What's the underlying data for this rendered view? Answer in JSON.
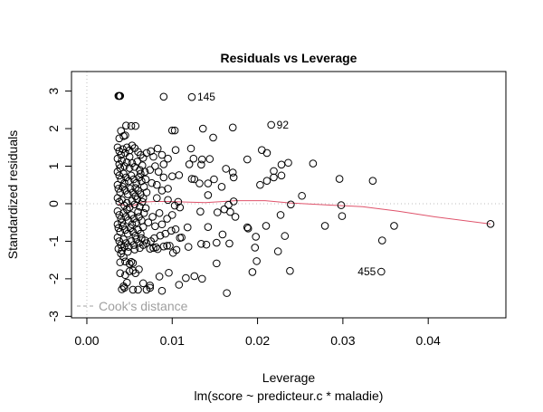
{
  "chart_data": {
    "type": "scatter",
    "title": "Residuals vs Leverage",
    "xlabel": "Leverage",
    "subtitle": "lm(score ~ predicteur.c * maladie)",
    "ylabel": "Standardized residuals",
    "xlim": [
      -0.0018,
      0.0491
    ],
    "ylim": [
      -3.04,
      3.52
    ],
    "xticks": [
      0.0,
      0.01,
      0.02,
      0.03,
      0.04
    ],
    "xtick_labels": [
      "0.00",
      "0.01",
      "0.02",
      "0.03",
      "0.04"
    ],
    "yticks": [
      -3,
      -2,
      -1,
      0,
      1,
      2,
      3
    ],
    "ytick_labels": [
      "-3",
      "-2",
      "-1",
      "0",
      "1",
      "2",
      "3"
    ],
    "grid": false,
    "reference_lines": {
      "x": 0,
      "y": 0,
      "color": "#bebebe",
      "style": "dotted"
    },
    "legend": {
      "label": "Cook's distance",
      "placement": "bottom-left",
      "color": "#a0a0a0",
      "style": "dashed"
    },
    "smoother": {
      "color": "#df536b",
      "points": [
        [
          0.0037,
          -0.01
        ],
        [
          0.0045,
          -0.05
        ],
        [
          0.0052,
          -0.07
        ],
        [
          0.0058,
          -0.02
        ],
        [
          0.0064,
          0.04
        ],
        [
          0.008,
          0.06
        ],
        [
          0.0096,
          0.06
        ],
        [
          0.012,
          0.04
        ],
        [
          0.0139,
          0.03
        ],
        [
          0.016,
          0.06
        ],
        [
          0.0174,
          0.08
        ],
        [
          0.0209,
          0.08
        ],
        [
          0.0238,
          0.02
        ],
        [
          0.028,
          -0.03
        ],
        [
          0.0323,
          -0.08
        ],
        [
          0.0365,
          -0.2
        ],
        [
          0.0408,
          -0.35
        ],
        [
          0.0473,
          -0.54
        ]
      ]
    },
    "labeled_points": [
      {
        "label": "145",
        "x": 0.0123,
        "y": 2.84,
        "side": "right"
      },
      {
        "label": "92",
        "x": 0.0216,
        "y": 2.1,
        "side": "right"
      },
      {
        "label": "455",
        "x": 0.0345,
        "y": -1.81,
        "side": "left"
      }
    ],
    "points": [
      [
        0.0037,
        2.87
      ],
      [
        0.0038,
        2.87
      ],
      [
        0.0039,
        2.87
      ],
      [
        0.009,
        2.85
      ],
      [
        0.0123,
        2.84
      ],
      [
        0.0216,
        2.1
      ],
      [
        0.01,
        1.95
      ],
      [
        0.0103,
        1.95
      ],
      [
        0.0136,
        2.0
      ],
      [
        0.0171,
        2.03
      ],
      [
        0.0148,
        1.76
      ],
      [
        0.0046,
        2.08
      ],
      [
        0.0052,
        2.07
      ],
      [
        0.0057,
        2.07
      ],
      [
        0.004,
        1.94
      ],
      [
        0.0043,
        1.8
      ],
      [
        0.0045,
        1.82
      ],
      [
        0.0038,
        1.74
      ],
      [
        0.0083,
        1.47
      ],
      [
        0.0104,
        1.43
      ],
      [
        0.0122,
        1.47
      ],
      [
        0.0205,
        1.43
      ],
      [
        0.0211,
        1.35
      ],
      [
        0.0188,
        1.18
      ],
      [
        0.0125,
        1.2
      ],
      [
        0.0135,
        1.18
      ],
      [
        0.0144,
        1.19
      ],
      [
        0.012,
        1.05
      ],
      [
        0.0134,
        1.04
      ],
      [
        0.0163,
        0.93
      ],
      [
        0.0171,
        0.83
      ],
      [
        0.0172,
        0.7
      ],
      [
        0.0219,
        0.87
      ],
      [
        0.0228,
        1.04
      ],
      [
        0.0236,
        1.09
      ],
      [
        0.0265,
        1.07
      ],
      [
        0.0219,
        0.7
      ],
      [
        0.0228,
        0.75
      ],
      [
        0.0296,
        0.66
      ],
      [
        0.0335,
        0.61
      ],
      [
        0.0252,
        0.21
      ],
      [
        0.0239,
        -0.02
      ],
      [
        0.0298,
        -0.04
      ],
      [
        0.0299,
        -0.33
      ],
      [
        0.0227,
        -0.3
      ],
      [
        0.0279,
        -0.59
      ],
      [
        0.036,
        -0.59
      ],
      [
        0.0232,
        -0.86
      ],
      [
        0.0346,
        -0.98
      ],
      [
        0.0224,
        -1.27
      ],
      [
        0.0345,
        -1.81
      ],
      [
        0.0238,
        -1.79
      ],
      [
        0.0473,
        -0.54
      ],
      [
        0.0123,
        0.66
      ],
      [
        0.0126,
        0.65
      ],
      [
        0.0132,
        0.54
      ],
      [
        0.0142,
        0.54
      ],
      [
        0.0149,
        0.65
      ],
      [
        0.0158,
        0.45
      ],
      [
        0.0203,
        0.5
      ],
      [
        0.0211,
        0.61
      ],
      [
        0.0142,
        0.23
      ],
      [
        0.0172,
        0.06
      ],
      [
        0.0166,
        -0.03
      ],
      [
        0.0161,
        -0.15
      ],
      [
        0.0168,
        -0.22
      ],
      [
        0.0174,
        -0.35
      ],
      [
        0.0153,
        -0.23
      ],
      [
        0.0133,
        -0.21
      ],
      [
        0.0118,
        -0.63
      ],
      [
        0.0142,
        -0.62
      ],
      [
        0.0188,
        -0.63
      ],
      [
        0.0189,
        -0.66
      ],
      [
        0.021,
        -0.59
      ],
      [
        0.0198,
        -0.88
      ],
      [
        0.0159,
        -0.82
      ],
      [
        0.0111,
        -0.9
      ],
      [
        0.0109,
        -0.91
      ],
      [
        0.0152,
        -1.04
      ],
      [
        0.0167,
        -1.06
      ],
      [
        0.0134,
        -1.07
      ],
      [
        0.014,
        -1.09
      ],
      [
        0.0119,
        -1.15
      ],
      [
        0.009,
        -1.14
      ],
      [
        0.0094,
        -1.12
      ],
      [
        0.0097,
        -1.12
      ],
      [
        0.0105,
        -1.23
      ],
      [
        0.0101,
        -1.31
      ],
      [
        0.0197,
        -1.17
      ],
      [
        0.0199,
        -1.53
      ],
      [
        0.0152,
        -1.59
      ],
      [
        0.0194,
        -1.82
      ],
      [
        0.0096,
        -1.84
      ],
      [
        0.0085,
        -1.94
      ],
      [
        0.0116,
        -1.98
      ],
      [
        0.0126,
        -1.93
      ],
      [
        0.0135,
        -2.0
      ],
      [
        0.0108,
        -2.16
      ],
      [
        0.0088,
        -2.32
      ],
      [
        0.0164,
        -2.38
      ],
      [
        0.0044,
        -2.24
      ],
      [
        0.0047,
        -2.1
      ],
      [
        0.0054,
        -2.29
      ],
      [
        0.006,
        -2.29
      ],
      [
        0.0066,
        -2.12
      ],
      [
        0.007,
        -2.29
      ],
      [
        0.0074,
        -2.18
      ],
      [
        0.0074,
        -2.24
      ],
      [
        0.0041,
        -2.28
      ],
      [
        0.0043,
        -2.2
      ],
      [
        0.0039,
        -1.85
      ],
      [
        0.005,
        -1.8
      ],
      [
        0.0054,
        -1.78
      ],
      [
        0.0061,
        -1.75
      ],
      [
        0.0045,
        -1.9
      ],
      [
        0.0057,
        -1.85
      ],
      [
        0.0039,
        -1.56
      ],
      [
        0.0045,
        -1.54
      ],
      [
        0.005,
        -1.6
      ],
      [
        0.0052,
        -1.55
      ],
      [
        0.0054,
        -1.58
      ],
      [
        0.004,
        -1.33
      ],
      [
        0.0043,
        -1.42
      ],
      [
        0.0074,
        -1.2
      ],
      [
        0.0078,
        -1.18
      ],
      [
        0.0081,
        -1.16
      ],
      [
        0.0083,
        -1.21
      ],
      [
        0.007,
        -1.05
      ],
      [
        0.0075,
        -1.0
      ],
      [
        0.0079,
        -0.92
      ],
      [
        0.0086,
        -0.85
      ],
      [
        0.0092,
        -0.8
      ],
      [
        0.0099,
        -0.72
      ],
      [
        0.0104,
        -0.68
      ],
      [
        0.0088,
        -0.55
      ],
      [
        0.008,
        -0.6
      ],
      [
        0.0072,
        -0.5
      ],
      [
        0.0094,
        -0.4
      ],
      [
        0.01,
        -0.3
      ],
      [
        0.0085,
        -0.25
      ],
      [
        0.0077,
        -0.35
      ],
      [
        0.0103,
        -0.05
      ],
      [
        0.0107,
        0.05
      ],
      [
        0.0109,
        -0.1
      ],
      [
        0.0095,
        0.1
      ],
      [
        0.0082,
        0.15
      ],
      [
        0.0088,
        0.35
      ],
      [
        0.0095,
        0.4
      ],
      [
        0.0082,
        0.5
      ],
      [
        0.0076,
        0.55
      ],
      [
        0.009,
        0.7
      ],
      [
        0.01,
        0.73
      ],
      [
        0.0108,
        0.76
      ],
      [
        0.0084,
        0.85
      ],
      [
        0.0074,
        0.9
      ],
      [
        0.008,
        1.0
      ],
      [
        0.009,
        1.05
      ],
      [
        0.0095,
        1.2
      ],
      [
        0.0078,
        1.25
      ],
      [
        0.007,
        1.35
      ],
      [
        0.0075,
        1.4
      ],
      [
        0.0088,
        1.3
      ],
      [
        0.0036,
        1.5
      ],
      [
        0.0038,
        1.4
      ],
      [
        0.004,
        1.3
      ],
      [
        0.0042,
        1.45
      ],
      [
        0.0045,
        1.35
      ],
      [
        0.0047,
        1.5
      ],
      [
        0.005,
        1.42
      ],
      [
        0.0053,
        1.55
      ],
      [
        0.0056,
        1.48
      ],
      [
        0.006,
        1.38
      ],
      [
        0.0063,
        1.3
      ],
      [
        0.0066,
        1.22
      ],
      [
        0.0036,
        1.2
      ],
      [
        0.0038,
        1.05
      ],
      [
        0.0041,
        1.15
      ],
      [
        0.0044,
        1.0
      ],
      [
        0.0047,
        1.1
      ],
      [
        0.005,
        0.95
      ],
      [
        0.0053,
        1.08
      ],
      [
        0.0056,
        0.98
      ],
      [
        0.0059,
        1.12
      ],
      [
        0.0062,
        0.9
      ],
      [
        0.0065,
        1.02
      ],
      [
        0.0068,
        0.85
      ],
      [
        0.0036,
        0.85
      ],
      [
        0.0038,
        0.75
      ],
      [
        0.004,
        0.65
      ],
      [
        0.0043,
        0.8
      ],
      [
        0.0046,
        0.7
      ],
      [
        0.0049,
        0.6
      ],
      [
        0.0052,
        0.75
      ],
      [
        0.0055,
        0.65
      ],
      [
        0.0058,
        0.55
      ],
      [
        0.0061,
        0.7
      ],
      [
        0.0064,
        0.6
      ],
      [
        0.0067,
        0.45
      ],
      [
        0.0036,
        0.5
      ],
      [
        0.0037,
        0.4
      ],
      [
        0.0039,
        0.3
      ],
      [
        0.0042,
        0.45
      ],
      [
        0.0045,
        0.35
      ],
      [
        0.0048,
        0.25
      ],
      [
        0.0051,
        0.4
      ],
      [
        0.0054,
        0.3
      ],
      [
        0.0057,
        0.2
      ],
      [
        0.006,
        0.35
      ],
      [
        0.0063,
        0.25
      ],
      [
        0.0066,
        0.15
      ],
      [
        0.007,
        0.3
      ],
      [
        0.0036,
        0.15
      ],
      [
        0.0038,
        0.05
      ],
      [
        0.0041,
        0.1
      ],
      [
        0.0044,
        -0.05
      ],
      [
        0.0047,
        0.02
      ],
      [
        0.005,
        -0.1
      ],
      [
        0.0053,
        0.08
      ],
      [
        0.0056,
        -0.02
      ],
      [
        0.0059,
        0.12
      ],
      [
        0.0062,
        -0.08
      ],
      [
        0.0065,
        0.05
      ],
      [
        0.0069,
        -0.12
      ],
      [
        0.0036,
        -0.2
      ],
      [
        0.0038,
        -0.3
      ],
      [
        0.004,
        -0.4
      ],
      [
        0.0043,
        -0.25
      ],
      [
        0.0046,
        -0.35
      ],
      [
        0.0049,
        -0.45
      ],
      [
        0.0052,
        -0.3
      ],
      [
        0.0055,
        -0.4
      ],
      [
        0.0058,
        -0.5
      ],
      [
        0.0061,
        -0.35
      ],
      [
        0.0064,
        -0.45
      ],
      [
        0.0067,
        -0.25
      ],
      [
        0.0036,
        -0.55
      ],
      [
        0.0037,
        -0.65
      ],
      [
        0.0039,
        -0.75
      ],
      [
        0.0042,
        -0.6
      ],
      [
        0.0045,
        -0.7
      ],
      [
        0.0048,
        -0.8
      ],
      [
        0.0051,
        -0.65
      ],
      [
        0.0054,
        -0.75
      ],
      [
        0.0057,
        -0.85
      ],
      [
        0.006,
        -0.7
      ],
      [
        0.0063,
        -0.8
      ],
      [
        0.0066,
        -0.62
      ],
      [
        0.0036,
        -0.9
      ],
      [
        0.0038,
        -1.0
      ],
      [
        0.004,
        -1.1
      ],
      [
        0.0043,
        -0.95
      ],
      [
        0.0046,
        -1.05
      ],
      [
        0.0049,
        -1.15
      ],
      [
        0.0052,
        -1.0
      ],
      [
        0.0055,
        -1.1
      ],
      [
        0.0058,
        -0.95
      ],
      [
        0.0061,
        -1.05
      ],
      [
        0.0064,
        -0.92
      ],
      [
        0.0068,
        -0.98
      ],
      [
        0.0037,
        -1.2
      ],
      [
        0.0041,
        -1.25
      ],
      [
        0.0044,
        -1.15
      ],
      [
        0.0048,
        -1.28
      ],
      [
        0.0056,
        -1.22
      ],
      [
        0.0062,
        -1.18
      ],
      [
        0.0039,
        0.95
      ],
      [
        0.0041,
        -0.5
      ],
      [
        0.0044,
        0.55
      ],
      [
        0.0047,
        -0.15
      ],
      [
        0.005,
        1.25
      ],
      [
        0.0053,
        -0.55
      ],
      [
        0.0057,
        0.42
      ],
      [
        0.006,
        -0.22
      ],
      [
        0.0063,
        0.8
      ],
      [
        0.0066,
        -1.1
      ],
      [
        0.0069,
        0.65
      ]
    ]
  }
}
